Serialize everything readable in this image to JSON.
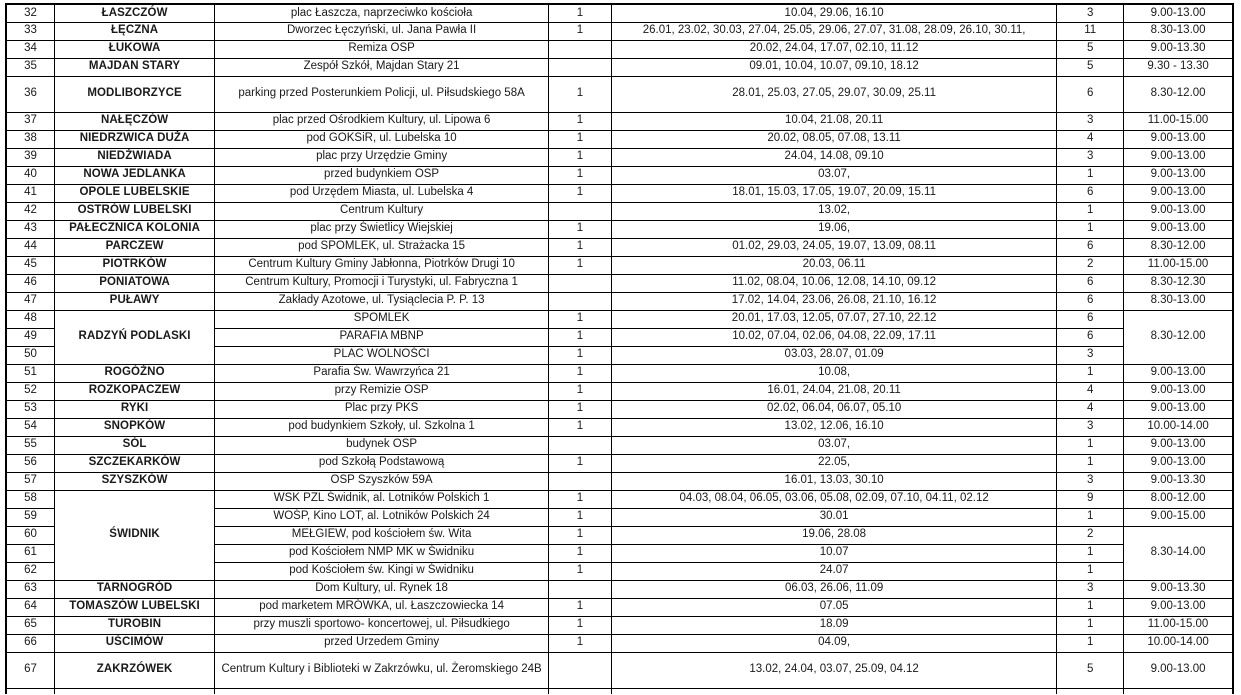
{
  "colors": {
    "border": "#000000",
    "text": "#1a1a1a",
    "dates_text": "#1f3252",
    "background": "#ffffff"
  },
  "table": {
    "columns": [
      "no",
      "name",
      "location",
      "flag",
      "dates",
      "count",
      "hours"
    ],
    "rows": [
      {
        "no": "32",
        "name": "ŁASZCZÓW",
        "location": "plac Łaszcza, naprzeciwko kościoła",
        "flag": "1",
        "dates": "10.04, 29.06, 16.10",
        "count": "3",
        "hours": "9.00-13.00"
      },
      {
        "no": "33",
        "name": "ŁĘCZNA",
        "location": "Dworzec Łęczyński, ul. Jana Pawła II",
        "flag": "1",
        "dates": "26.01, 23.02, 30.03, 27.04, 25.05, 29.06, 27.07, 31.08, 28.09, 26.10, 30.11,",
        "count": "11",
        "hours": "8.30-13.00"
      },
      {
        "no": "34",
        "name": "ŁUKOWA",
        "location": "Remiza OSP",
        "flag": "",
        "dates": "20.02, 24.04, 17.07, 02.10, 11.12",
        "count": "5",
        "hours": "9.00-13.30"
      },
      {
        "no": "35",
        "name": "MAJDAN STARY",
        "location": "Zespół Szkół, Majdan Stary 21",
        "flag": "",
        "dates": "09.01, 10.04, 10.07, 09.10, 18.12",
        "count": "5",
        "hours": "9.30 - 13.30"
      },
      {
        "no": "36",
        "name": "MODLIBORZYCE",
        "location": "parking przed Posterunkiem Policji, ul. Piłsudskiego 58A",
        "flag": "1",
        "dates": "28.01, 25.03, 27.05, 29.07, 30.09, 25.11",
        "count": "6",
        "hours": "8.30-12.00",
        "tall": true
      },
      {
        "no": "37",
        "name": "NAŁĘCZÓW",
        "location": "plac przed Ośrodkiem Kultury, ul. Lipowa 6",
        "flag": "1",
        "dates": "10.04, 21.08, 20.11",
        "count": "3",
        "hours": "11.00-15.00"
      },
      {
        "no": "38",
        "name": "NIEDRZWICA DUŻA",
        "location": "pod GOKSiR, ul. Lubelska 10",
        "flag": "1",
        "dates": "20.02, 08.05, 07.08, 13.11",
        "count": "4",
        "hours": "9.00-13.00"
      },
      {
        "no": "39",
        "name": "NIEDŹWIADA",
        "location": "plac przy Urzędzie Gminy",
        "flag": "1",
        "dates": "24.04, 14.08, 09.10",
        "count": "3",
        "hours": "9.00-13.00"
      },
      {
        "no": "40",
        "name": "NOWA JEDLANKA",
        "location": "przed budynkiem OSP",
        "flag": "1",
        "dates": "03.07,",
        "count": "1",
        "hours": "9.00-13.00"
      },
      {
        "no": "41",
        "name": "OPOLE LUBELSKIE",
        "location": "pod Urzędem Miasta, ul. Lubelska 4",
        "flag": "1",
        "dates": "18.01, 15.03, 17.05, 19.07, 20.09, 15.11",
        "count": "6",
        "hours": "9.00-13.00"
      },
      {
        "no": "42",
        "name": "OSTRÓW LUBELSKI",
        "location": "Centrum Kultury",
        "flag": "",
        "dates": "13.02,",
        "count": "1",
        "hours": "9.00-13.00"
      },
      {
        "no": "43",
        "name": "PAŁECZNICA KOLONIA",
        "location": "plac przy Świetlicy Wiejskiej",
        "flag": "1",
        "dates": "19.06,",
        "count": "1",
        "hours": "9.00-13.00"
      },
      {
        "no": "44",
        "name": "PARCZEW",
        "location": "pod SPOMLEK, ul. Strażacka 15",
        "flag": "1",
        "dates": "01.02, 29.03, 24.05, 19.07, 13.09, 08.11",
        "count": "6",
        "hours": "8.30-12.00"
      },
      {
        "no": "45",
        "name": "PIOTRKÓW",
        "location": "Centrum Kultury Gminy Jabłonna, Piotrków Drugi 10",
        "flag": "1",
        "dates": "20.03, 06.11",
        "count": "2",
        "hours": "11.00-15.00"
      },
      {
        "no": "46",
        "name": "PONIATOWA",
        "location": "Centrum Kultury, Promocji i Turystyki, ul. Fabryczna 1",
        "flag": "",
        "dates": "11.02, 08.04, 10.06, 12.08, 14.10, 09.12",
        "count": "6",
        "hours": "8.30-12.30"
      },
      {
        "no": "47",
        "name": "PUŁAWY",
        "location": "Zakłady Azotowe, ul. Tysiąclecia P. P. 13",
        "flag": "",
        "dates": "17.02, 14.04, 23.06, 26.08, 21.10, 16.12",
        "count": "6",
        "hours": "8.30-13.00"
      },
      {
        "no": "48",
        "name": "RADZYŃ PODLASKI",
        "nameSpan": 3,
        "location": "SPOMLEK",
        "flag": "1",
        "dates": "20.01, 17.03, 12.05, 07.07, 27.10, 22.12",
        "count": "6",
        "hours": "8.30-12.00",
        "hoursSpan": 3
      },
      {
        "no": "49",
        "location": "PARAFIA MBNP",
        "flag": "1",
        "dates": "10.02, 07.04, 02.06, 04.08, 22.09, 17.11",
        "count": "6"
      },
      {
        "no": "50",
        "location": "PLAC WOLNOŚCI",
        "flag": "1",
        "dates": "03.03, 28.07, 01.09",
        "count": "3"
      },
      {
        "no": "51",
        "name": "ROGÓŹNO",
        "location": "Parafia Św. Wawrzyńca 21",
        "flag": "1",
        "dates": "10.08,",
        "count": "1",
        "hours": "9.00-13.00"
      },
      {
        "no": "52",
        "name": "ROZKOPACZEW",
        "location": "przy Remizie OSP",
        "flag": "1",
        "dates": "16.01, 24.04, 21.08, 20.11",
        "count": "4",
        "hours": "9.00-13.00"
      },
      {
        "no": "53",
        "name": "RYKI",
        "location": "Plac przy PKS",
        "flag": "1",
        "dates": "02.02, 06.04, 06.07, 05.10",
        "count": "4",
        "hours": "9.00-13.00"
      },
      {
        "no": "54",
        "name": "SNOPKÓW",
        "location": "pod budynkiem Szkoły, ul. Szkolna 1",
        "flag": "1",
        "dates": "13.02, 12.06, 16.10",
        "count": "3",
        "hours": "10.00-14.00"
      },
      {
        "no": "55",
        "name": "SÓL",
        "location": "budynek OSP",
        "flag": "",
        "dates": "03.07,",
        "count": "1",
        "hours": "9.00-13.00"
      },
      {
        "no": "56",
        "name": "SZCZEKARKÓW",
        "location": "pod Szkołą Podstawową",
        "flag": "1",
        "dates": "22.05,",
        "count": "1",
        "hours": "9.00-13.00"
      },
      {
        "no": "57",
        "name": "SZYSZKÓW",
        "location": "OSP Szyszków 59A",
        "flag": "",
        "dates": "16.01, 13.03, 30.10",
        "count": "3",
        "hours": "9.00-13.30"
      },
      {
        "no": "58",
        "name": "ŚWIDNIK",
        "nameSpan": 5,
        "location": "WSK PZL Świdnik, al. Lotników Polskich 1",
        "flag": "1",
        "dates": "04.03, 08.04, 06.05, 03.06, 05.08, 02.09, 07.10, 04.11, 02.12",
        "count": "9",
        "hours": "8.00-12.00"
      },
      {
        "no": "59",
        "location": "WOŚP, Kino LOT, al. Lotników Polskich 24",
        "flag": "1",
        "dates": "30.01",
        "count": "1",
        "hours": "9.00-15.00"
      },
      {
        "no": "60",
        "location": "MEŁGIEW, pod kościołem św. Wita",
        "flag": "1",
        "dates": "19.06, 28.08",
        "count": "2",
        "hours": "8.30-14.00",
        "hoursSpan": 3
      },
      {
        "no": "61",
        "location": "pod Kościołem NMP MK w Świdniku",
        "flag": "1",
        "dates": "10.07",
        "count": "1"
      },
      {
        "no": "62",
        "location": "pod Kościołem św. Kingi w Świdniku",
        "flag": "1",
        "dates": "24.07",
        "count": "1"
      },
      {
        "no": "63",
        "name": "TARNOGRÓD",
        "location": "Dom Kultury, ul. Rynek 18",
        "flag": "",
        "dates": "06.03, 26.06, 11.09",
        "count": "3",
        "hours": "9.00-13.30"
      },
      {
        "no": "64",
        "name": "TOMASZÓW LUBELSKI",
        "location": "pod marketem MRÓWKA, ul. Łaszczowiecka 14",
        "flag": "1",
        "dates": "07.05",
        "count": "1",
        "hours": "9.00-13.00"
      },
      {
        "no": "65",
        "name": "TUROBIN",
        "location": "przy muszli sportowo- koncertowej, ul. Piłsudkiego",
        "flag": "1",
        "dates": "18.09",
        "count": "1",
        "hours": "11.00-15.00"
      },
      {
        "no": "66",
        "name": "UŚCIMÓW",
        "location": "przed Urzedem Gminy",
        "flag": "1",
        "dates": "04.09,",
        "count": "1",
        "hours": "10.00-14.00"
      },
      {
        "no": "67",
        "name": "ZAKRZÓWEK",
        "location": "Centrum Kultury i Biblioteki w Zakrzówku, ul. Żeromskiego 24B",
        "flag": "",
        "dates": "13.02, 24.04, 03.07, 25.09, 04.12",
        "count": "5",
        "hours": "9.00-13.00",
        "tall": true
      }
    ]
  }
}
